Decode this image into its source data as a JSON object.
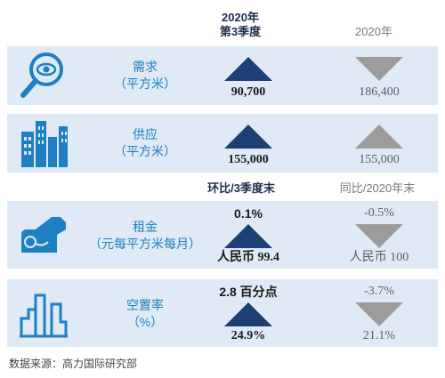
{
  "headers": {
    "period_main_line1": "2020年",
    "period_main_line2": "第3季度",
    "period_compare": "2020年"
  },
  "rows": [
    {
      "label_line1": "需求",
      "label_line2": "（平方米）",
      "icon": "magnifier-eye-icon",
      "current_value": "90,700",
      "current_trend": "up",
      "compare_value": "186,400",
      "compare_trend": "down"
    },
    {
      "label_line1": "供应",
      "label_line2": "（平方米）",
      "icon": "city-buildings-icon",
      "current_value": "155,000",
      "current_trend": "up",
      "compare_value": "155,000",
      "compare_trend": "up"
    },
    {
      "label_line1": "租金",
      "label_line2": "（元每平方米每月）",
      "icon": "key-icon",
      "current_change": "0.1%",
      "current_value": "人民币 99.4",
      "current_trend": "up",
      "compare_change": "-0.5%",
      "compare_value": "人民币 100",
      "compare_trend": "down"
    },
    {
      "label_line1": "空置率",
      "label_line2": "（%）",
      "icon": "vacancy-bars-icon",
      "current_change": "2.8 百分点",
      "current_value": "24.9%",
      "current_trend": "up",
      "compare_change": "-3.7%",
      "compare_value": "21.1%",
      "compare_trend": "down"
    }
  ],
  "subheaders": {
    "qoq": "环比/3季度末",
    "yoy": "同比/2020年末"
  },
  "source": "数据来源：高力国际研究部",
  "colors": {
    "row_bg": "#dfeaf6",
    "accent_blue": "#1e7fc2",
    "up_triangle": "#1d3f73",
    "down_triangle": "#9c9c9c"
  }
}
